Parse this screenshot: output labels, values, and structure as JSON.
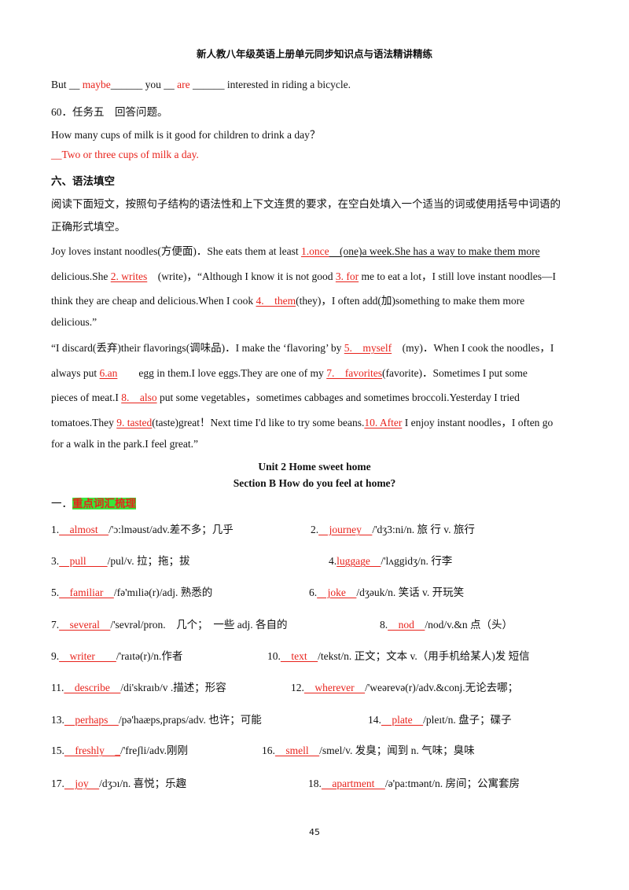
{
  "header": "新人教八年级英语上册单元同步知识点与语法精讲精练",
  "line1": {
    "a": "But __ ",
    "b": "maybe",
    "c": "______ you __ ",
    "d": "are",
    "e": " ______ interested in riding a bicycle."
  },
  "task5": "60．任务五　回答问题。",
  "question": "How many cups of milk is it good for children to drink a day？",
  "answer": "__Two or three cups of milk a day.",
  "section6_title": "六、语法填空",
  "instr1": "阅读下面短文，按照句子结构的语法性和上下文连贯的要求，在空白处填入一个适当的词或使用括号中词语的",
  "instr2": "正确形式填空。",
  "p1": {
    "a": "Joy loves instant noodles(方便面)．She eats them at least ",
    "b": "1.once",
    "c": "　(one)a week.She has a way to make them more"
  },
  "p2": {
    "a": "delicious.She ",
    "b": "2. writes",
    "c": "　(write)，“Although I know it is not good ",
    "d": "3. for",
    "e": " me to eat a lot，I still love instant noodles—I"
  },
  "p3": {
    "a": "think they are cheap and delicious.When I cook ",
    "b": "4.　them",
    "c": "(they)，I often add(加)something to make them more"
  },
  "p4": "delicious.”",
  "p5": {
    "a": "“I discard(丢弃)their flavorings(调味品)．I make the ‘flavoring’ by ",
    "b": "5.　myself",
    "c": "　(my)．When I cook the noodles，I"
  },
  "p6": {
    "a": "always put ",
    "b": "6.an",
    "c": "　　egg in them.I love eggs.They are one of my ",
    "d": "7.　favorites",
    "e": "(favorite)．Sometimes I put some"
  },
  "p7": {
    "a": "pieces of meat.I ",
    "b": "8.　also",
    "c": " put some vegetables，sometimes cabbages and sometimes broccoli.Yesterday I tried"
  },
  "p8": {
    "a": "tomatoes.They ",
    "b": "9. tasted",
    "c": "(taste)great！Next time I'd like to try some beans.",
    "d": "10. After",
    "e": " I enjoy instant noodles，I often go"
  },
  "p9": "for a walk in the park.I feel great.”",
  "unit_title": "Unit  2  Home  sweet  home",
  "section_title": "Section B How  do  you  feel  at  home?",
  "vocab_prefix": "一．",
  "vocab_heading": "重点词汇梳理",
  "vocab": [
    {
      "n": "1.",
      "w": "　almost　",
      "r": "/'ɔ:lməust/adv.差不多；几乎"
    },
    {
      "n": "2.",
      "w": "　journey　",
      "r": "/'dʒ3:ni/n. 旅 行 v. 旅行"
    },
    {
      "n": "3.",
      "w": "　pull　　",
      "r": "/pul/v. 拉；拖；拔"
    },
    {
      "n": "4.",
      "w": "luggage　",
      "r": "/'lʌggidʒ/n. 行李"
    },
    {
      "n": "5.",
      "w": "　familiar　",
      "r": "/fə'mıliə(r)/adj. 熟悉的"
    },
    {
      "n": "6.",
      "w": "　joke　",
      "r": "/dʒəuk/n. 笑话 v. 开玩笑"
    },
    {
      "n": "7.",
      "w": "　several　",
      "r": "/'sevrəl/pron.　几个；　一些 adj. 各自的"
    },
    {
      "n": "8.",
      "w": "　nod　",
      "r": "/nod/v.&n 点（头）"
    },
    {
      "n": "9.",
      "w": "　writer　　",
      "r": "/'raıtə(r)/n.作者"
    },
    {
      "n": "10.",
      "w": "　text　",
      "r": "/tekst/n. 正文；文本 v.（用手机给某人)发 短信"
    },
    {
      "n": "11.",
      "w": "　describe　",
      "r": "/di'skraıb/v .描述；形容"
    },
    {
      "n": "12.",
      "w": "　wherever　",
      "r": "/'weərevə(r)/adv.&conj.无论去哪；"
    },
    {
      "n": "13.",
      "w": "　perhaps　",
      "r": "/pə'haæps,praps/adv. 也许；可能"
    },
    {
      "n": "14.",
      "w": "　plate　",
      "r": "/pleıt/n. 盘子；碟子"
    },
    {
      "n": "15.",
      "w": "　freshly　_",
      "r": "/'freʃli/adv.刚刚"
    },
    {
      "n": "16.",
      "w": "　smell　",
      "r": "/smel/v. 发臭；闻到 n. 气味；臭味"
    },
    {
      "n": "17.",
      "w": "　joy　",
      "r": "/dʒɔı/n. 喜悦；乐趣"
    },
    {
      "n": "18.",
      "w": "　apartment　",
      "r": "/ə'pa:tmənt/n. 房间；公寓套房"
    }
  ],
  "page_number": "45"
}
